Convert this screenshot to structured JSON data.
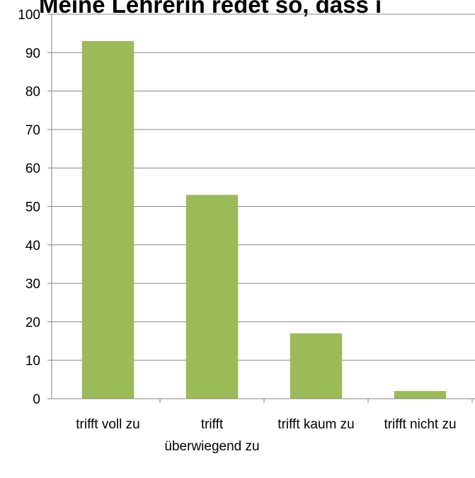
{
  "chart_data": {
    "type": "bar",
    "title": "Meine Lehrerin redet so, dass i",
    "categories": [
      "trifft voll zu",
      "trifft überwiegend zu",
      "trifft kaum zu",
      "trifft nicht zu"
    ],
    "values": [
      93,
      53,
      17,
      2
    ],
    "color": "#9bbb59",
    "ylim": [
      0,
      100
    ],
    "yticks": [
      0,
      10,
      20,
      30,
      40,
      50,
      60,
      70,
      80,
      90,
      100
    ],
    "grid": true
  }
}
